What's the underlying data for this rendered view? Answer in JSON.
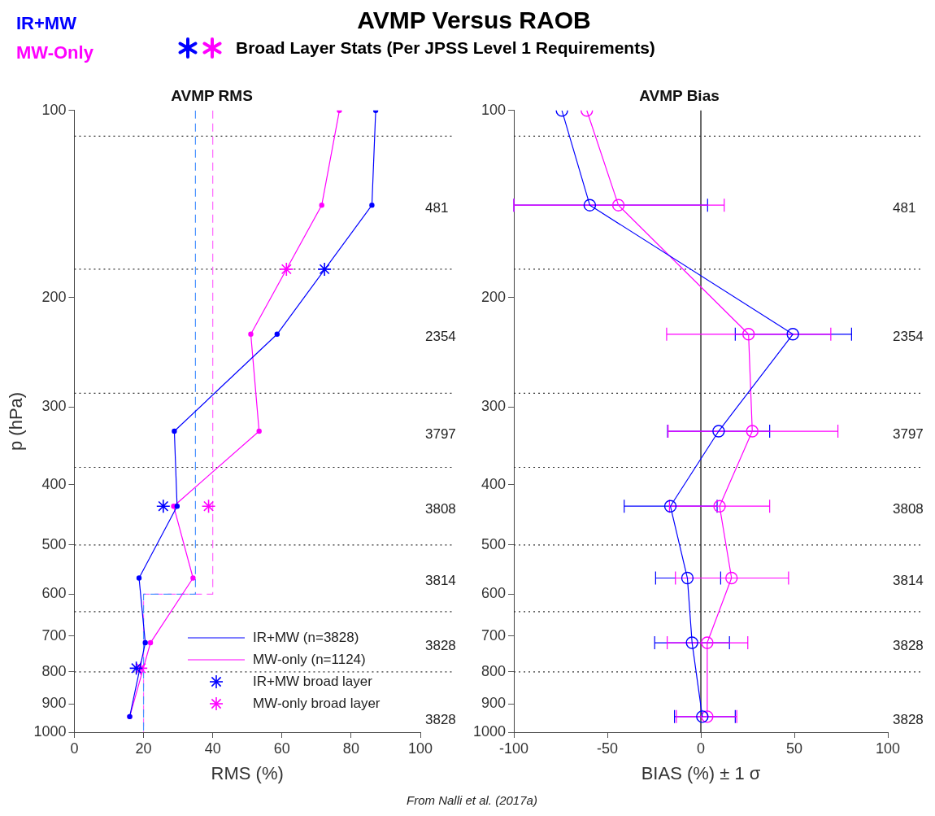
{
  "chart_data": [
    {
      "type": "other",
      "title": "AVMP Versus RAOB",
      "subtitle": "Broad Layer Stats (Per JPSS Level 1 Requirements)",
      "annotations": [
        "IR+MW",
        "MW-Only"
      ]
    },
    {
      "type": "line",
      "title": "AVMP RMS",
      "xlabel": "RMS (%)",
      "ylabel": "p (hPa)",
      "xlim": [
        0,
        100
      ],
      "xticks": [
        0,
        20,
        40,
        60,
        80,
        100
      ],
      "ylim": [
        1000,
        100
      ],
      "yticks": [
        100,
        200,
        300,
        400,
        500,
        600,
        700,
        800,
        900,
        1000
      ],
      "log": "y",
      "legend": "bottom right",
      "series": [
        {
          "name": "IR+MW (n=3828)",
          "type": "line",
          "marker": "circle",
          "color": "#0000ff",
          "x": [
            87.1,
            86.0,
            58.6,
            28.9,
            29.7,
            18.7,
            20.5,
            16.0
          ],
          "values": [
            100,
            142,
            229,
            328,
            433,
            565,
            718,
            944
          ]
        },
        {
          "name": "MW-only (n=1124)",
          "type": "line",
          "marker": "circle",
          "color": "#ff00ff",
          "x": [
            76.6,
            71.5,
            51.0,
            53.4,
            28.7,
            34.3,
            22.0,
            16.0
          ],
          "values": [
            100,
            142,
            229,
            328,
            433,
            565,
            718,
            944
          ]
        },
        {
          "name": "IR+MW broad layer",
          "type": "scatter",
          "marker": "cross",
          "color": "#0000ff",
          "x": [
            72.3,
            25.7,
            17.9
          ],
          "values": [
            180,
            433,
            789
          ]
        },
        {
          "name": "MW-only broad layer",
          "type": "scatter",
          "marker": "cross",
          "color": "#ff00ff",
          "x": [
            61.3,
            38.8,
            19.2
          ],
          "values": [
            180,
            433,
            789
          ]
        },
        {
          "type": "line",
          "marker": "none",
          "line_style": "dashed",
          "color": "#4d94ff",
          "x": [
            35,
            35,
            20,
            20
          ],
          "values": [
            100,
            600,
            600,
            1000
          ]
        },
        {
          "type": "line",
          "marker": "none",
          "line_style": "dashed",
          "color": "#ff66ff",
          "x": [
            40,
            40,
            20,
            20
          ],
          "values": [
            100,
            600,
            600,
            1000
          ]
        }
      ],
      "ref_lines": [
        {
          "axis": "y",
          "value": 110,
          "color": "#333333",
          "line_style": "dotted"
        },
        {
          "axis": "y",
          "value": 180,
          "color": "#333333",
          "line_style": "dotted"
        },
        {
          "axis": "y",
          "value": 285,
          "color": "#333333",
          "line_style": "dotted"
        },
        {
          "axis": "y",
          "value": 375,
          "color": "#333333",
          "line_style": "dotted"
        },
        {
          "axis": "y",
          "value": 500,
          "color": "#333333",
          "line_style": "dotted"
        },
        {
          "axis": "y",
          "value": 640,
          "color": "#333333",
          "line_style": "dotted"
        },
        {
          "axis": "y",
          "value": 800,
          "color": "#333333",
          "line_style": "dotted"
        }
      ],
      "annotations": [
        "481",
        "2354",
        "3797",
        "3808",
        "3814",
        "3828",
        "3828",
        "From Nalli et al. (2017a)"
      ]
    },
    {
      "type": "line",
      "title": "AVMP Bias",
      "xlabel": "BIAS (%) ± 1 σ",
      "xlim": [
        -100,
        100
      ],
      "xticks": [
        -100,
        -50,
        0,
        50,
        100
      ],
      "ylim": [
        1000,
        100
      ],
      "yticks": [
        100,
        200,
        300,
        400,
        500,
        600,
        700,
        800,
        900,
        1000
      ],
      "log": "y",
      "series": [
        {
          "type": "line",
          "marker": "circle",
          "color": "#0000ff",
          "x": [
            -74.3,
            -59.4,
            49.2,
            9.5,
            -16.3,
            -7.2,
            -4.7,
            0.8
          ],
          "values": [
            100,
            142,
            229,
            328,
            433,
            565,
            718,
            944
          ],
          "xerrors": [
            null,
            [
              -100,
              3.6
            ],
            [
              18.4,
              80.6
            ],
            [
              -17.8,
              36.8
            ],
            [
              -41.0,
              8.7
            ],
            [
              -24.2,
              10.6
            ],
            [
              -24.7,
              15.3
            ],
            [
              -14.1,
              18.4
            ]
          ]
        },
        {
          "type": "line",
          "marker": "circle",
          "color": "#ff00ff",
          "x": [
            -61.0,
            -44.1,
            25.5,
            27.5,
            10.0,
            16.4,
            3.4,
            3.4
          ],
          "values": [
            100,
            142,
            229,
            328,
            433,
            565,
            718,
            944
          ],
          "xerrors": [
            null,
            [
              -100,
              12.5
            ],
            [
              -18.3,
              69.5
            ],
            [
              -17.5,
              73.3
            ],
            [
              -16.8,
              36.8
            ],
            [
              -13.6,
              46.9
            ],
            [
              -18.0,
              25.1
            ],
            [
              -13.1,
              19.2
            ]
          ]
        }
      ],
      "ref_lines": [
        {
          "axis": "x",
          "value": 0,
          "color": "#000000",
          "line_style": "solid"
        },
        {
          "axis": "y",
          "value": 110,
          "color": "#333333",
          "line_style": "dotted"
        },
        {
          "axis": "y",
          "value": 180,
          "color": "#333333",
          "line_style": "dotted"
        },
        {
          "axis": "y",
          "value": 285,
          "color": "#333333",
          "line_style": "dotted"
        },
        {
          "axis": "y",
          "value": 375,
          "color": "#333333",
          "line_style": "dotted"
        },
        {
          "axis": "y",
          "value": 500,
          "color": "#333333",
          "line_style": "dotted"
        },
        {
          "axis": "y",
          "value": 640,
          "color": "#333333",
          "line_style": "dotted"
        },
        {
          "axis": "y",
          "value": 800,
          "color": "#333333",
          "line_style": "dotted"
        }
      ],
      "annotations": [
        "481",
        "2354",
        "3797",
        "3808",
        "3814",
        "3828",
        "3828"
      ]
    }
  ]
}
